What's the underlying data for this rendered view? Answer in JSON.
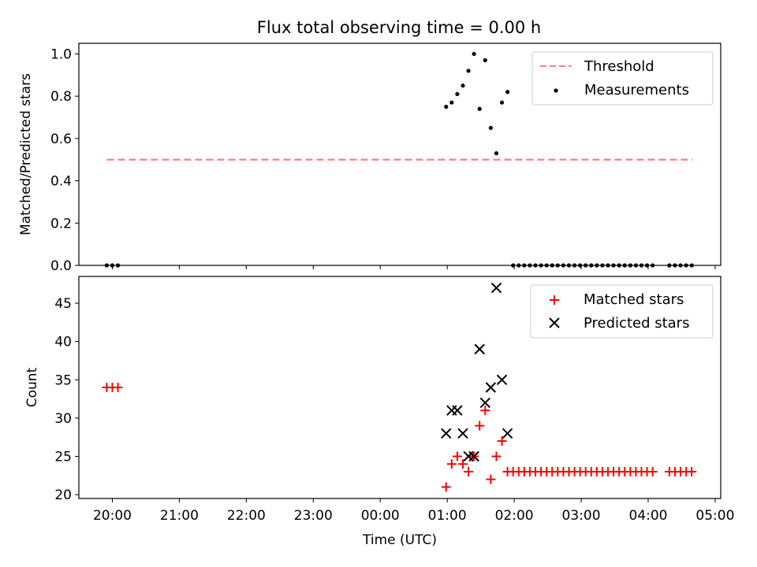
{
  "chart_data": [
    {
      "type": "scatter",
      "title": "Flux total observing time = 0.00 h",
      "xlabel": "",
      "ylabel": "Matched/Predicted stars",
      "x_is_time": true,
      "xlim": [
        "19:30",
        "05:05"
      ],
      "ylim": [
        0,
        1.05
      ],
      "yticks": [
        0.0,
        0.2,
        0.4,
        0.6,
        0.8,
        1.0
      ],
      "ytick_labels": [
        "0.0",
        "0.2",
        "0.4",
        "0.6",
        "0.8",
        "1.0"
      ],
      "grid": false,
      "legend": "top-right",
      "series": [
        {
          "name": "Threshold",
          "style": "dashed-line",
          "color": "#ff7f7f",
          "points": [
            [
              "19:55",
              0.5
            ],
            [
              "04:40",
              0.5
            ]
          ]
        },
        {
          "name": "Measurements",
          "style": "dot",
          "color": "#000000",
          "points": [
            [
              "19:55",
              0.0
            ],
            [
              "20:00",
              0.0
            ],
            [
              "20:05",
              0.0
            ],
            [
              "00:59",
              0.75
            ],
            [
              "01:04",
              0.77
            ],
            [
              "01:09",
              0.81
            ],
            [
              "01:14",
              0.85
            ],
            [
              "01:19",
              0.92
            ],
            [
              "01:24",
              1.0
            ],
            [
              "01:29",
              0.74
            ],
            [
              "01:34",
              0.97
            ],
            [
              "01:39",
              0.65
            ],
            [
              "01:44",
              0.53
            ],
            [
              "01:49",
              0.77
            ],
            [
              "01:54",
              0.82
            ],
            [
              "01:59",
              0.0
            ],
            [
              "02:04",
              0.0
            ],
            [
              "02:09",
              0.0
            ],
            [
              "02:14",
              0.0
            ],
            [
              "02:19",
              0.0
            ],
            [
              "02:24",
              0.0
            ],
            [
              "02:29",
              0.0
            ],
            [
              "02:34",
              0.0
            ],
            [
              "02:39",
              0.0
            ],
            [
              "02:44",
              0.0
            ],
            [
              "02:49",
              0.0
            ],
            [
              "02:54",
              0.0
            ],
            [
              "02:59",
              0.0
            ],
            [
              "03:04",
              0.0
            ],
            [
              "03:09",
              0.0
            ],
            [
              "03:14",
              0.0
            ],
            [
              "03:19",
              0.0
            ],
            [
              "03:24",
              0.0
            ],
            [
              "03:29",
              0.0
            ],
            [
              "03:34",
              0.0
            ],
            [
              "03:39",
              0.0
            ],
            [
              "03:44",
              0.0
            ],
            [
              "03:49",
              0.0
            ],
            [
              "03:54",
              0.0
            ],
            [
              "03:59",
              0.0
            ],
            [
              "04:04",
              0.0
            ],
            [
              "04:19",
              0.0
            ],
            [
              "04:24",
              0.0
            ],
            [
              "04:29",
              0.0
            ],
            [
              "04:34",
              0.0
            ],
            [
              "04:39",
              0.0
            ]
          ]
        }
      ]
    },
    {
      "type": "scatter",
      "title": "",
      "xlabel": "Time (UTC)",
      "ylabel": "Count",
      "x_is_time": true,
      "xlim": [
        "19:30",
        "05:05"
      ],
      "ylim": [
        19.5,
        48.5
      ],
      "yticks": [
        20,
        25,
        30,
        35,
        40,
        45
      ],
      "ytick_labels": [
        "20",
        "25",
        "30",
        "35",
        "40",
        "45"
      ],
      "xticks": [
        "20:00",
        "21:00",
        "22:00",
        "23:00",
        "00:00",
        "01:00",
        "02:00",
        "03:00",
        "04:00",
        "05:00"
      ],
      "xtick_labels": [
        "20:00",
        "21:00",
        "22:00",
        "23:00",
        "00:00",
        "01:00",
        "02:00",
        "03:00",
        "04:00",
        "05:00"
      ],
      "grid": false,
      "legend": "top-right",
      "series": [
        {
          "name": "Matched stars",
          "style": "plus",
          "color": "#ff0000",
          "points": [
            [
              "19:55",
              34
            ],
            [
              "20:00",
              34
            ],
            [
              "20:05",
              34
            ],
            [
              "00:59",
              21
            ],
            [
              "01:04",
              24
            ],
            [
              "01:09",
              25
            ],
            [
              "01:14",
              24
            ],
            [
              "01:19",
              23
            ],
            [
              "01:24",
              25
            ],
            [
              "01:29",
              29
            ],
            [
              "01:34",
              31
            ],
            [
              "01:39",
              22
            ],
            [
              "01:44",
              25
            ],
            [
              "01:49",
              27
            ],
            [
              "01:54",
              23
            ],
            [
              "01:59",
              23
            ],
            [
              "02:04",
              23
            ],
            [
              "02:09",
              23
            ],
            [
              "02:14",
              23
            ],
            [
              "02:19",
              23
            ],
            [
              "02:24",
              23
            ],
            [
              "02:29",
              23
            ],
            [
              "02:34",
              23
            ],
            [
              "02:39",
              23
            ],
            [
              "02:44",
              23
            ],
            [
              "02:49",
              23
            ],
            [
              "02:54",
              23
            ],
            [
              "02:59",
              23
            ],
            [
              "03:04",
              23
            ],
            [
              "03:09",
              23
            ],
            [
              "03:14",
              23
            ],
            [
              "03:19",
              23
            ],
            [
              "03:24",
              23
            ],
            [
              "03:29",
              23
            ],
            [
              "03:34",
              23
            ],
            [
              "03:39",
              23
            ],
            [
              "03:44",
              23
            ],
            [
              "03:49",
              23
            ],
            [
              "03:54",
              23
            ],
            [
              "03:59",
              23
            ],
            [
              "04:04",
              23
            ],
            [
              "04:19",
              23
            ],
            [
              "04:24",
              23
            ],
            [
              "04:29",
              23
            ],
            [
              "04:34",
              23
            ],
            [
              "04:39",
              23
            ]
          ]
        },
        {
          "name": "Predicted stars",
          "style": "x",
          "color": "#000000",
          "points": [
            [
              "00:59",
              28
            ],
            [
              "01:04",
              31
            ],
            [
              "01:09",
              31
            ],
            [
              "01:14",
              28
            ],
            [
              "01:19",
              25
            ],
            [
              "01:24",
              25
            ],
            [
              "01:29",
              39
            ],
            [
              "01:34",
              32
            ],
            [
              "01:39",
              34
            ],
            [
              "01:44",
              47
            ],
            [
              "01:49",
              35
            ],
            [
              "01:54",
              28
            ]
          ]
        }
      ]
    }
  ]
}
